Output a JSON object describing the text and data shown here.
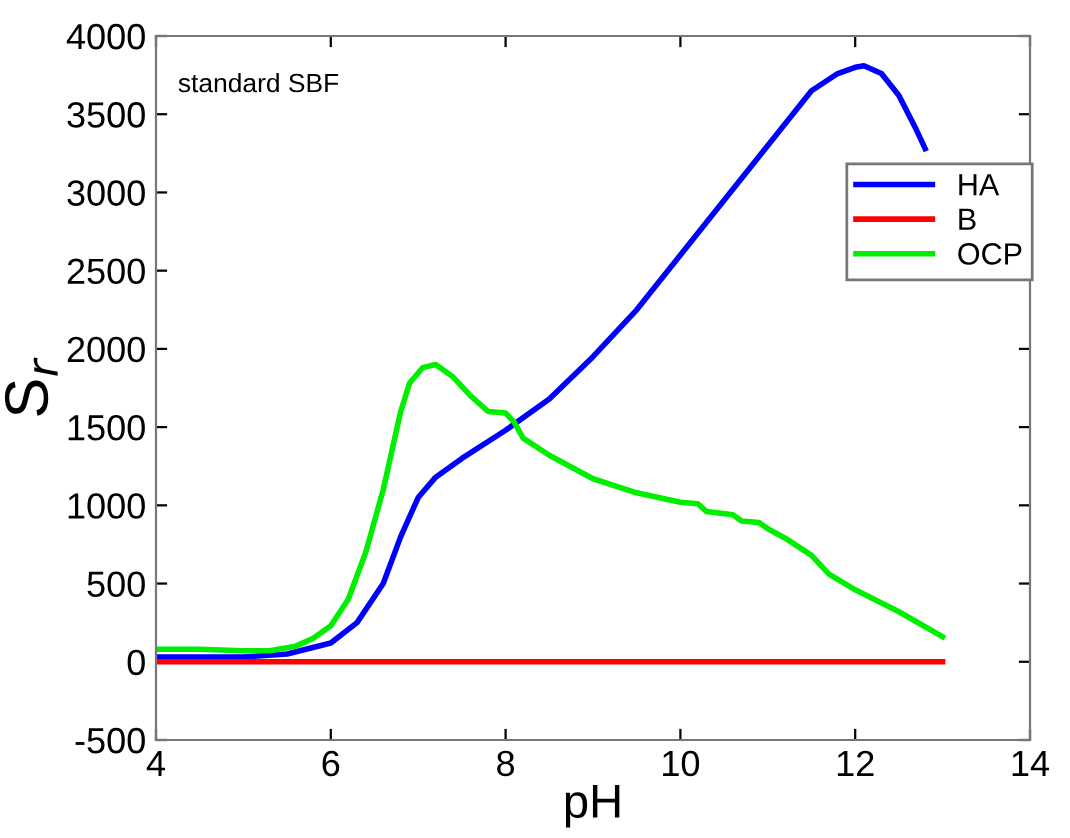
{
  "chart_data": {
    "type": "line",
    "xlabel": "pH",
    "ylabel": "S$_{r}$",
    "annotations": [
      "standard SBF"
    ],
    "xlim": [
      4,
      14
    ],
    "ylim": [
      -500,
      4000
    ],
    "xticks": [
      4,
      6,
      8,
      10,
      12,
      14
    ],
    "yticks": [
      -500,
      0,
      500,
      1000,
      1500,
      2000,
      2500,
      3000,
      3500,
      4000
    ],
    "grid": false,
    "legend": "top right",
    "marker": "none",
    "line_style": "solid",
    "series": [
      {
        "name": "HA",
        "color": "#0000ff",
        "x": [
          4,
          4.5,
          5,
          5.5,
          6,
          6.3,
          6.6,
          6.8,
          7,
          7.2,
          7.5,
          8,
          8.5,
          9,
          9.5,
          10,
          10.5,
          11,
          11.5,
          11.8,
          12,
          12.1,
          12.3,
          12.5,
          12.7,
          12.8
        ],
        "values": [
          30,
          30,
          30,
          50,
          120,
          250,
          500,
          800,
          1050,
          1180,
          1300,
          1480,
          1680,
          1950,
          2250,
          2600,
          2950,
          3300,
          3650,
          3760,
          3800,
          3810,
          3760,
          3620,
          3400,
          3280
        ]
      },
      {
        "name": "B",
        "color": "#ff0000",
        "x": [
          4,
          13
        ],
        "values": [
          0,
          0
        ]
      },
      {
        "name": "OCP",
        "color": "#00ee00",
        "x": [
          4,
          4.3,
          4.5,
          5,
          5.3,
          5.6,
          5.8,
          6,
          6.2,
          6.4,
          6.6,
          6.8,
          6.9,
          7.05,
          7.2,
          7.4,
          7.6,
          7.8,
          8,
          8.1,
          8.2,
          8.5,
          9,
          9.5,
          10,
          10.2,
          10.3,
          10.6,
          10.7,
          10.9,
          11,
          11.2,
          11.5,
          11.7,
          12,
          12.5,
          13
        ],
        "values": [
          80,
          80,
          80,
          70,
          70,
          100,
          150,
          230,
          400,
          700,
          1100,
          1600,
          1780,
          1880,
          1900,
          1820,
          1700,
          1600,
          1590,
          1530,
          1430,
          1320,
          1170,
          1080,
          1020,
          1010,
          960,
          940,
          900,
          890,
          850,
          790,
          680,
          560,
          460,
          320,
          160
        ]
      }
    ]
  }
}
